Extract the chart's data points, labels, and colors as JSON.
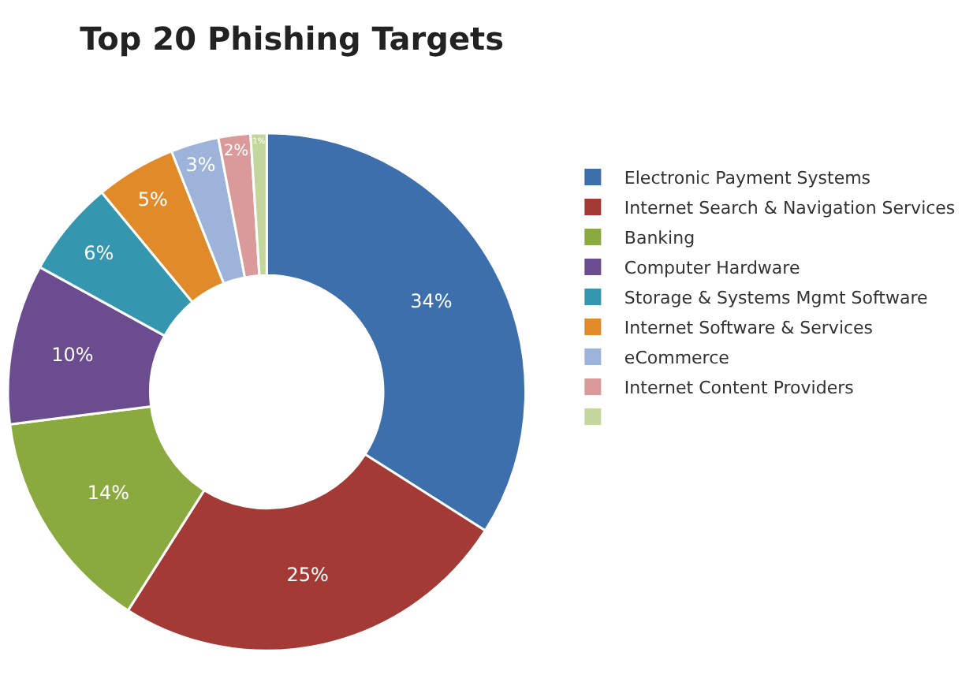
{
  "chart_data": {
    "type": "donut",
    "title": "Top 20 Phishing Targets",
    "categories": [
      "Electronic Payment Systems",
      "Internet Search & Navigation Services",
      "Banking",
      "Computer Hardware",
      "Storage & Systems Mgmt Software",
      "Internet Software & Services",
      "eCommerce",
      "Internet Content Providers",
      null
    ],
    "values": [
      34,
      25,
      14,
      10,
      6,
      5,
      3,
      2,
      1
    ],
    "value_labels": [
      "34%",
      "25%",
      "14%",
      "10%",
      "6%",
      "5%",
      "3%",
      "2%",
      "1%"
    ],
    "colors": [
      "#3d6fad",
      "#a33a36",
      "#8aaa3f",
      "#6a4c8f",
      "#3596b0",
      "#e08a2a",
      "#9db3d9",
      "#d99a99",
      "#c3d69b"
    ],
    "legend": "right"
  }
}
